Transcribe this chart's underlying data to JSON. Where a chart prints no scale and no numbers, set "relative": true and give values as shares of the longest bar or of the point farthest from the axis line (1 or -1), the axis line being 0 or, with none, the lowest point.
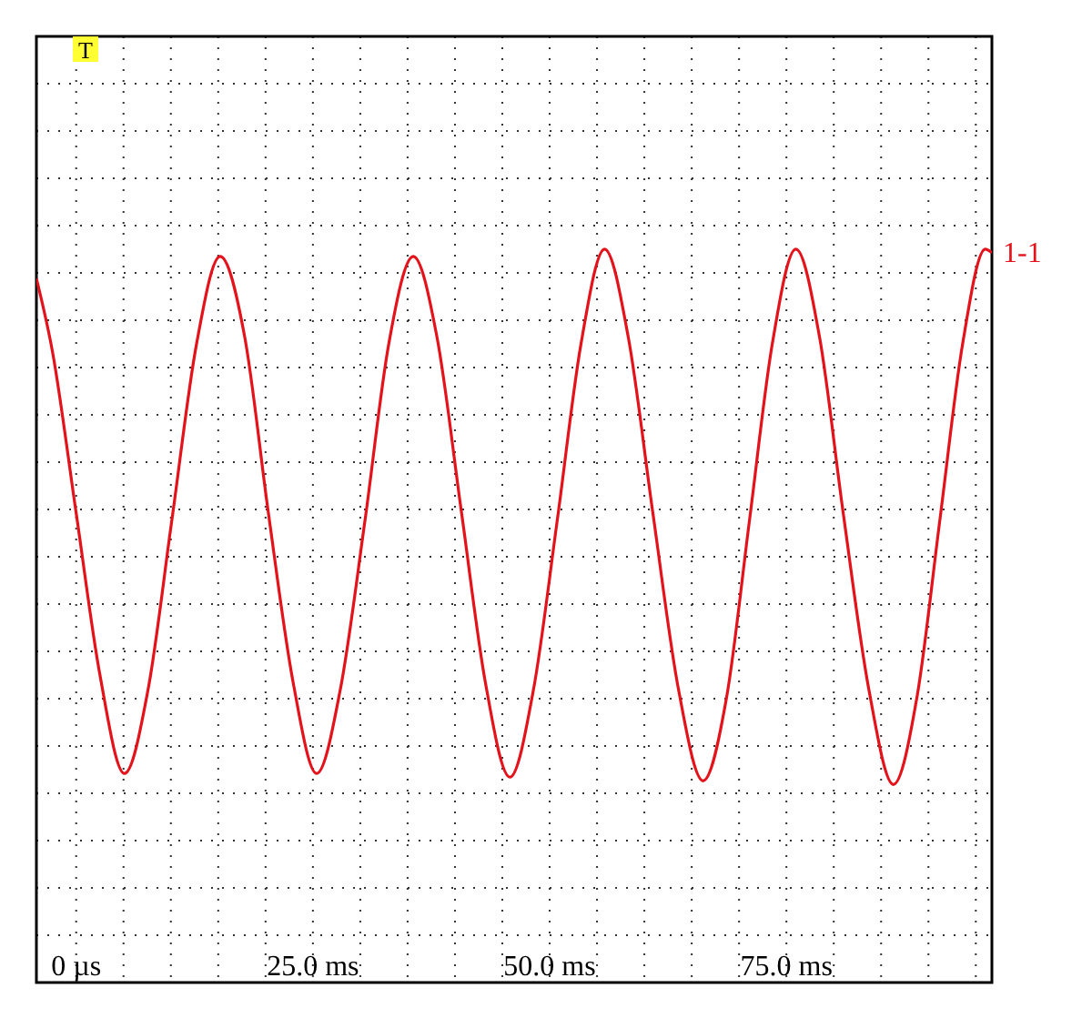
{
  "chart_data": {
    "type": "line",
    "relative": true,
    "grid": true,
    "line_style": "solid",
    "xlim": [
      -4.2,
      96.7
    ],
    "xticks": [
      {
        "value": 0,
        "label": "0 µs"
      },
      {
        "value": 5,
        "label": null
      },
      {
        "value": 10,
        "label": null
      },
      {
        "value": 15,
        "label": null
      },
      {
        "value": 20,
        "label": null
      },
      {
        "value": 25,
        "label": "25.0 ms"
      },
      {
        "value": 30,
        "label": null
      },
      {
        "value": 35,
        "label": null
      },
      {
        "value": 40,
        "label": null
      },
      {
        "value": 45,
        "label": null
      },
      {
        "value": 50,
        "label": "50.0 ms"
      },
      {
        "value": 55,
        "label": null
      },
      {
        "value": 60,
        "label": null
      },
      {
        "value": 65,
        "label": null
      },
      {
        "value": 70,
        "label": null
      },
      {
        "value": 75,
        "label": "75.0 ms"
      },
      {
        "value": 80,
        "label": null
      },
      {
        "value": 85,
        "label": null
      },
      {
        "value": 90,
        "label": null
      },
      {
        "value": 95,
        "label": null
      }
    ],
    "annotations": [
      "T"
    ],
    "x": [
      -4.2,
      -2.5,
      0,
      2.5,
      5.1,
      7.6,
      10.1,
      12.7,
      15.2,
      17.8,
      20.3,
      22.9,
      25.4,
      27.9,
      30.5,
      33.0,
      35.6,
      38.1,
      40.7,
      43.2,
      45.8,
      48.3,
      50.8,
      53.3,
      55.8,
      58.3,
      60.9,
      63.6,
      66.2,
      68.7,
      71.1,
      73.5,
      76.0,
      78.5,
      81.0,
      83.7,
      86.3,
      88.8,
      91.2,
      93.6,
      96.0,
      96.7
    ],
    "series": [
      {
        "name": "1-1",
        "color": "#e3121b",
        "values": [
          0.96,
          0.86,
          0.64,
          0.42,
          0.285,
          0.4,
          0.63,
          0.87,
          0.99,
          0.88,
          0.64,
          0.41,
          0.285,
          0.4,
          0.63,
          0.87,
          0.99,
          0.88,
          0.64,
          0.41,
          0.28,
          0.4,
          0.63,
          0.87,
          1.0,
          0.88,
          0.64,
          0.4,
          0.275,
          0.39,
          0.63,
          0.87,
          1.0,
          0.88,
          0.64,
          0.4,
          0.27,
          0.39,
          0.63,
          0.87,
          1.0,
          0.995
        ]
      }
    ]
  }
}
